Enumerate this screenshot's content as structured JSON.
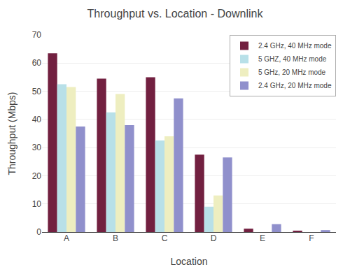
{
  "chart_data": {
    "type": "bar",
    "title": "Throughput vs. Location - Downlink",
    "xlabel": "Location",
    "ylabel": "Throughput (Mbps)",
    "categories": [
      "A",
      "B",
      "C",
      "D",
      "E",
      "F"
    ],
    "series": [
      {
        "name": "2.4 GHz, 40 MHz mode",
        "color": "#722040",
        "values": [
          63.5,
          54.5,
          55.0,
          27.5,
          1.2,
          0.3
        ]
      },
      {
        "name": "5 GHZ, 40 MHz mode",
        "color": "#B8E0E8",
        "values": [
          52.5,
          42.5,
          32.5,
          9.0,
          0.0,
          0.0
        ]
      },
      {
        "name": "5 GHz, 20 MHz mode",
        "color": "#EEEEC0",
        "values": [
          51.5,
          49.0,
          34.0,
          13.0,
          0.0,
          0.0
        ]
      },
      {
        "name": "2.4 GHz, 20 MHz mode",
        "color": "#9090CC",
        "values": [
          37.5,
          38.0,
          47.5,
          26.5,
          2.8,
          0.7
        ]
      }
    ],
    "ylim": [
      0,
      70
    ],
    "yticks": [
      0,
      10,
      20,
      30,
      40,
      50,
      60,
      70
    ],
    "grid": true,
    "legend": "upper right"
  }
}
